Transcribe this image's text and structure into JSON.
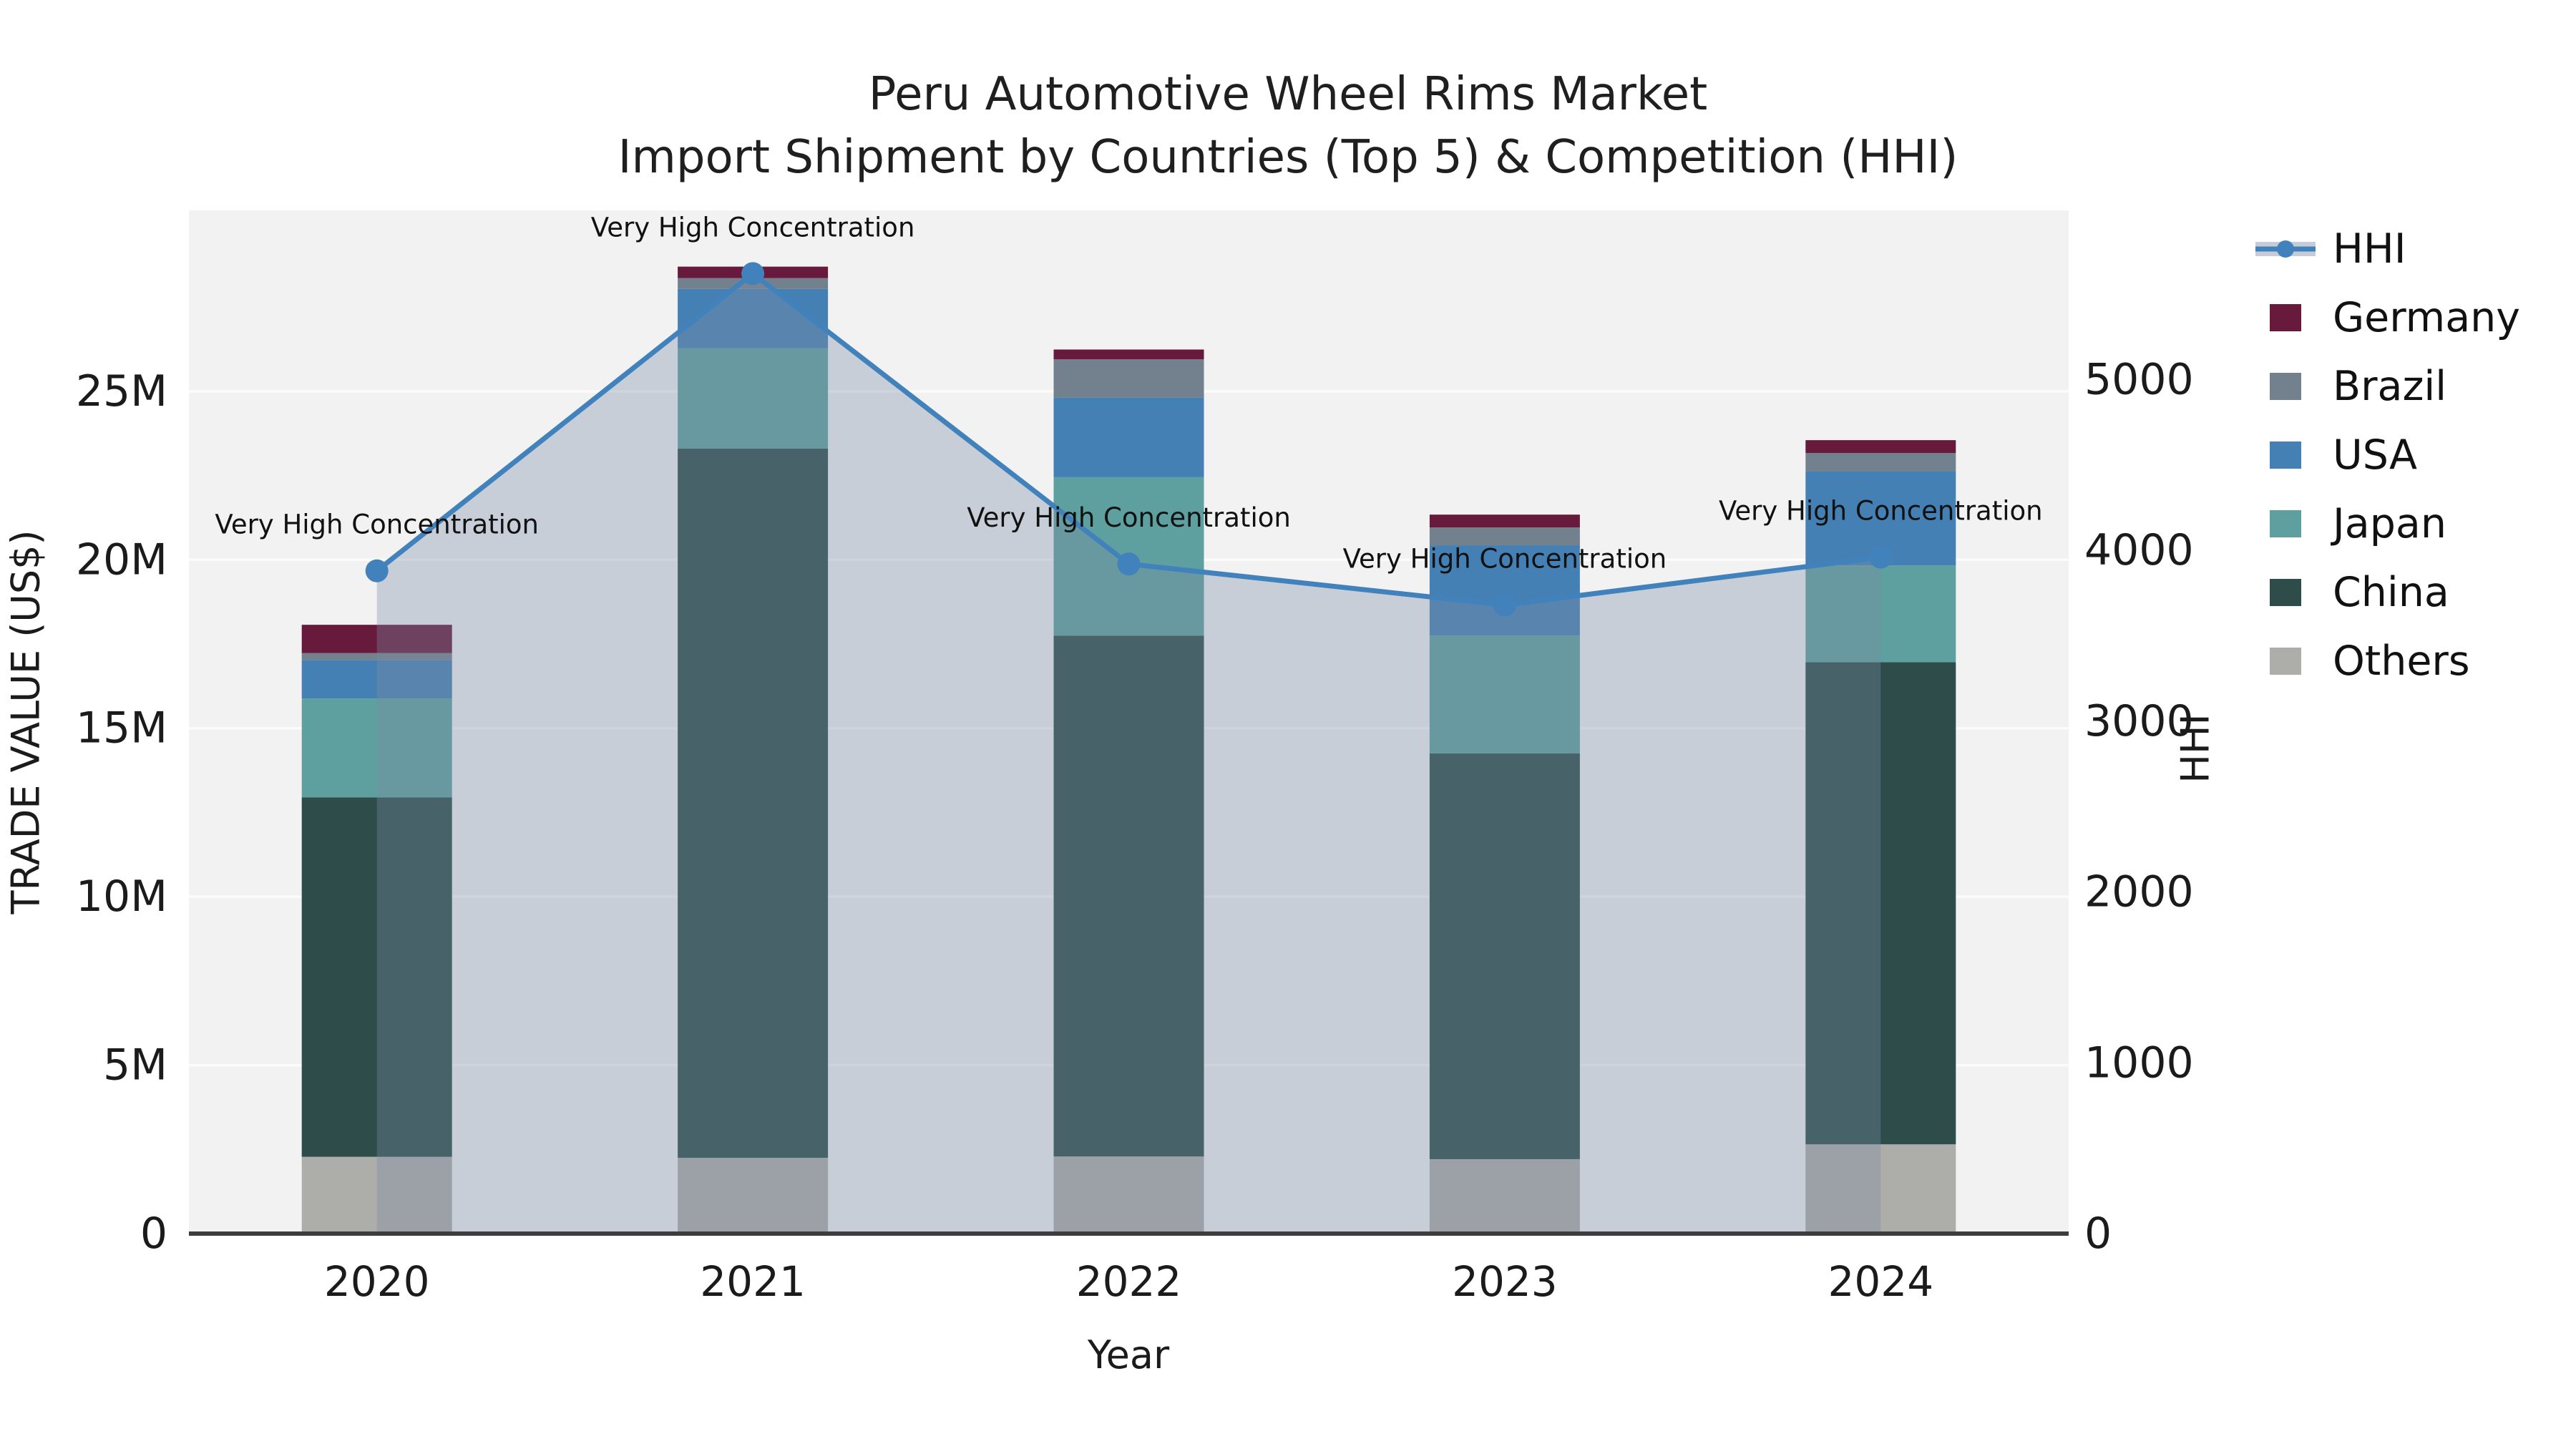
{
  "title": {
    "line1": "Peru Automotive Wheel Rims Market",
    "line2": "Import Shipment by Countries (Top 5) & Competition (HHI)"
  },
  "axes": {
    "x_label": "Year",
    "y_left_label": "TRADE VALUE (US$)",
    "y_right_label": "HHI",
    "y_left_ticks": [
      "0",
      "5M",
      "10M",
      "15M",
      "20M",
      "25M"
    ],
    "y_left_tick_values": [
      0,
      5,
      10,
      15,
      20,
      25
    ],
    "y_right_ticks": [
      "0",
      "1000",
      "2000",
      "3000",
      "4000",
      "5000"
    ],
    "y_right_tick_values": [
      0,
      1000,
      2000,
      3000,
      4000,
      5000
    ],
    "y_left_max": 30.37,
    "y_left_unit": "M US$",
    "y_right_max": 5990
  },
  "chart_data": {
    "type": "bar+line",
    "categories": [
      "2020",
      "2021",
      "2022",
      "2023",
      "2024"
    ],
    "stacked": true,
    "values_unit": "million US$",
    "series": [
      {
        "name": "Others",
        "color": "#adadaa",
        "values": [
          2.28,
          2.25,
          2.29,
          2.21,
          2.65
        ]
      },
      {
        "name": "China",
        "color": "#2d4c4a",
        "values": [
          10.67,
          21.05,
          15.46,
          12.04,
          14.31
        ]
      },
      {
        "name": "Japan",
        "color": "#5ea09f",
        "values": [
          2.93,
          2.98,
          4.7,
          3.5,
          2.87
        ]
      },
      {
        "name": "USA",
        "color": "#4580b4",
        "values": [
          1.14,
          1.76,
          2.37,
          2.68,
          2.8
        ]
      },
      {
        "name": "Brazil",
        "color": "#73808e",
        "values": [
          0.21,
          0.32,
          1.13,
          0.53,
          0.54
        ]
      },
      {
        "name": "Germany",
        "color": "#671a3c",
        "values": [
          0.84,
          0.34,
          0.29,
          0.38,
          0.38
        ]
      }
    ],
    "bar_totals": [
      18.07,
      28.7,
      26.24,
      21.34,
      23.55
    ],
    "line_series": {
      "name": "HHI",
      "axis": "right",
      "color": "#4282bc",
      "area_fill": "rgba(122,140,163,0.35)",
      "values": [
        3880,
        5620,
        3920,
        3680,
        3960
      ]
    },
    "annotations": [
      {
        "x": "2020",
        "text": "Very High Concentration"
      },
      {
        "x": "2021",
        "text": "Very High Concentration"
      },
      {
        "x": "2022",
        "text": "Very High Concentration"
      },
      {
        "x": "2023",
        "text": "Very High Concentration"
      },
      {
        "x": "2024",
        "text": "Very High Concentration"
      }
    ],
    "grid": true,
    "legend_position": "top-right-outside"
  },
  "legend": {
    "items": [
      {
        "label": "HHI",
        "type": "line",
        "color": "#4282bc"
      },
      {
        "label": "Germany",
        "type": "patch",
        "color": "#671a3c"
      },
      {
        "label": "Brazil",
        "type": "patch",
        "color": "#73808e"
      },
      {
        "label": "USA",
        "type": "patch",
        "color": "#4580b4"
      },
      {
        "label": "Japan",
        "type": "patch",
        "color": "#5ea09f"
      },
      {
        "label": "China",
        "type": "patch",
        "color": "#2d4c4a"
      },
      {
        "label": "Others",
        "type": "patch",
        "color": "#adadaa"
      }
    ]
  },
  "colors": {
    "figure_bg": "#ffffff",
    "plot_bg": "#f2f2f3",
    "grid": "#fbfbfb",
    "spine": "#3d3d3d",
    "text": "#1b1b1b",
    "hhi_line": "#4282bc",
    "hhi_area": "rgba(122,140,163,0.35)",
    "legend_band": "#c6ccd7"
  }
}
